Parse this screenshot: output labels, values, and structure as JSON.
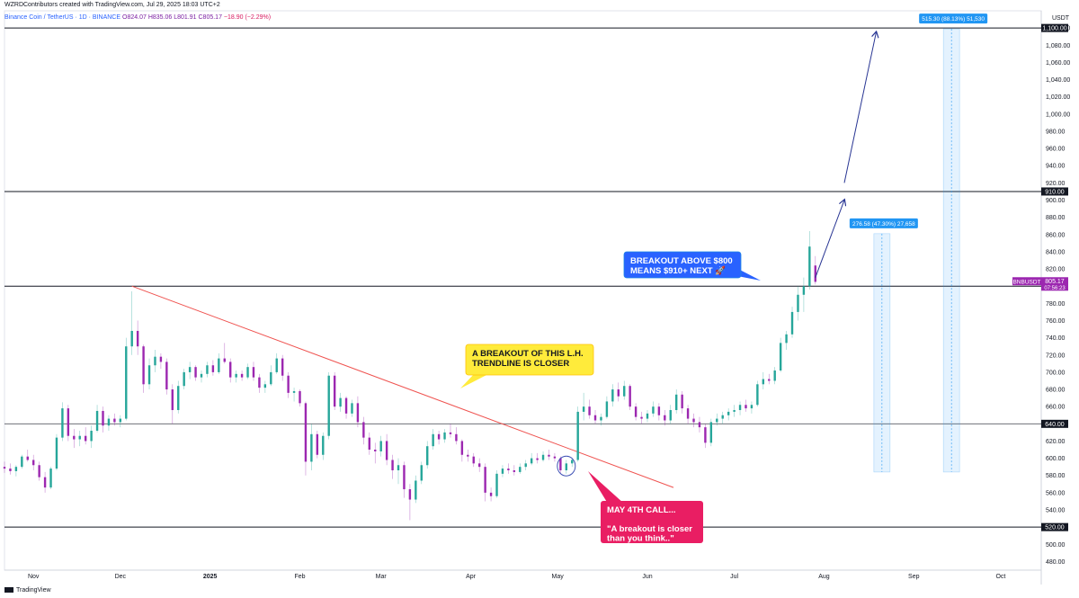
{
  "header": {
    "line1": "WZRDContributors created with TradingView.com, Jul 29, 2025 18:03 UTC+2",
    "symbol": "Binance Coin / TetherUS · 1D · BINANCE",
    "open": "O824.07",
    "high": "H835.06",
    "low": "L801.91",
    "close": "C805.17",
    "change": "−18.90 (−2.29%)"
  },
  "footer": {
    "brand": "TradingView"
  },
  "colors": {
    "up": "#26a69a",
    "down": "#9c27b0",
    "trendline": "#ef5350",
    "arrow": "#283593",
    "range": "#2196f3"
  },
  "chart_data": {
    "type": "candlestick",
    "title": "Binance Coin / TetherUS · 1D · BINANCE",
    "currency_label": "USDT",
    "ylim": [
      470,
      1120
    ],
    "y_ticks": [
      480,
      500,
      520,
      540,
      560,
      580,
      600,
      620,
      640,
      660,
      680,
      700,
      720,
      740,
      760,
      780,
      800,
      820,
      840,
      860,
      880,
      900,
      920,
      940,
      960,
      980,
      1000,
      1020,
      1040,
      1060,
      1080,
      1100
    ],
    "x_ticks": [
      "Nov",
      "Dec",
      "2025",
      "Feb",
      "Mar",
      "Apr",
      "May",
      "Jun",
      "Jul",
      "Aug",
      "Sep",
      "Oct"
    ],
    "x_range": [
      "2024-10-22",
      "2025-10-15"
    ],
    "levels": [
      {
        "label": "1,100.00",
        "value": 1100
      },
      {
        "label": "910.00",
        "value": 910
      },
      {
        "label": "800.00",
        "value": 800
      },
      {
        "label": "640.00",
        "value": 640
      },
      {
        "label": "520.00",
        "value": 520
      }
    ],
    "price_label": {
      "symbol": "BNBUSDT",
      "value": "805.17",
      "timer": "07:56:23"
    },
    "trendline": {
      "start": [
        "2024-12-05",
        800
      ],
      "end": [
        "2025-06-10",
        566
      ]
    },
    "arrows": [
      {
        "from": [
          "2025-07-29",
          810
        ],
        "to": [
          "2025-08-08",
          900
        ]
      },
      {
        "from": [
          "2025-08-08",
          920
        ],
        "to": [
          "2025-08-19",
          1095
        ]
      }
    ],
    "ranges": [
      {
        "label": "276.58 (47.30%) 27,658",
        "date": "2025-08-21",
        "low": 584,
        "high": 861
      },
      {
        "label": "515.30 (88.13%) 51,530",
        "date": "2025-09-14",
        "low": 584,
        "high": 1099
      }
    ],
    "annotations": [
      {
        "lines": [
          "A BREAKOUT OF THIS L.H.",
          "TRENDLINE IS CLOSER"
        ],
        "style": "yellow"
      },
      {
        "lines": [
          "BREAKOUT ABOVE $800",
          "MEANS $910+ NEXT 🚀"
        ],
        "style": "blue"
      },
      {
        "lines": [
          "MAY 4TH CALL...",
          "",
          "\"A breakout is closer",
          "than you think..\""
        ],
        "style": "red"
      }
    ],
    "candles": [
      [
        "2024-10-22",
        590,
        596,
        583,
        588
      ],
      [
        "2024-10-24",
        588,
        594,
        581,
        585
      ],
      [
        "2024-10-26",
        585,
        592,
        579,
        590
      ],
      [
        "2024-10-28",
        590,
        604,
        588,
        602
      ],
      [
        "2024-10-30",
        602,
        610,
        596,
        598
      ],
      [
        "2024-11-01",
        598,
        604,
        586,
        592
      ],
      [
        "2024-11-03",
        592,
        596,
        574,
        578
      ],
      [
        "2024-11-05",
        578,
        584,
        560,
        566
      ],
      [
        "2024-11-07",
        566,
        590,
        564,
        588
      ],
      [
        "2024-11-09",
        588,
        628,
        586,
        624
      ],
      [
        "2024-11-11",
        624,
        665,
        620,
        658
      ],
      [
        "2024-11-13",
        658,
        662,
        620,
        626
      ],
      [
        "2024-11-15",
        626,
        634,
        612,
        622
      ],
      [
        "2024-11-17",
        622,
        632,
        614,
        626
      ],
      [
        "2024-11-19",
        626,
        636,
        616,
        620
      ],
      [
        "2024-11-21",
        620,
        638,
        612,
        632
      ],
      [
        "2024-11-23",
        632,
        662,
        630,
        655
      ],
      [
        "2024-11-25",
        655,
        660,
        630,
        638
      ],
      [
        "2024-11-27",
        638,
        650,
        632,
        646
      ],
      [
        "2024-11-29",
        646,
        652,
        638,
        642
      ],
      [
        "2024-12-01",
        642,
        650,
        636,
        646
      ],
      [
        "2024-12-03",
        646,
        740,
        644,
        730
      ],
      [
        "2024-12-05",
        730,
        794,
        720,
        748
      ],
      [
        "2024-12-07",
        748,
        760,
        720,
        730
      ],
      [
        "2024-12-09",
        730,
        732,
        676,
        686
      ],
      [
        "2024-12-11",
        686,
        716,
        680,
        708
      ],
      [
        "2024-12-13",
        708,
        726,
        700,
        718
      ],
      [
        "2024-12-15",
        718,
        722,
        704,
        712
      ],
      [
        "2024-12-17",
        712,
        716,
        674,
        680
      ],
      [
        "2024-12-19",
        680,
        686,
        640,
        656
      ],
      [
        "2024-12-21",
        656,
        690,
        652,
        684
      ],
      [
        "2024-12-23",
        684,
        704,
        680,
        700
      ],
      [
        "2024-12-25",
        700,
        712,
        692,
        706
      ],
      [
        "2024-12-27",
        706,
        708,
        690,
        694
      ],
      [
        "2024-12-29",
        694,
        702,
        688,
        698
      ],
      [
        "2024-12-31",
        698,
        712,
        694,
        708
      ],
      [
        "2025-01-02",
        708,
        714,
        696,
        700
      ],
      [
        "2025-01-04",
        700,
        722,
        698,
        716
      ],
      [
        "2025-01-06",
        716,
        734,
        710,
        712
      ],
      [
        "2025-01-08",
        712,
        716,
        688,
        694
      ],
      [
        "2025-01-10",
        694,
        702,
        688,
        698
      ],
      [
        "2025-01-12",
        698,
        702,
        690,
        694
      ],
      [
        "2025-01-14",
        694,
        710,
        692,
        706
      ],
      [
        "2025-01-16",
        706,
        712,
        690,
        694
      ],
      [
        "2025-01-18",
        694,
        698,
        676,
        682
      ],
      [
        "2025-01-20",
        682,
        690,
        676,
        686
      ],
      [
        "2025-01-22",
        686,
        708,
        684,
        700
      ],
      [
        "2025-01-24",
        700,
        722,
        698,
        716
      ],
      [
        "2025-01-26",
        716,
        720,
        690,
        696
      ],
      [
        "2025-01-28",
        696,
        700,
        670,
        676
      ],
      [
        "2025-01-30",
        676,
        682,
        666,
        678
      ],
      [
        "2025-02-01",
        678,
        680,
        660,
        664
      ],
      [
        "2025-02-03",
        664,
        666,
        580,
        596
      ],
      [
        "2025-02-05",
        596,
        640,
        586,
        628
      ],
      [
        "2025-02-07",
        628,
        632,
        600,
        604
      ],
      [
        "2025-02-09",
        604,
        630,
        598,
        626
      ],
      [
        "2025-02-11",
        626,
        700,
        622,
        696
      ],
      [
        "2025-02-13",
        696,
        700,
        656,
        660
      ],
      [
        "2025-02-15",
        660,
        676,
        654,
        670
      ],
      [
        "2025-02-17",
        670,
        672,
        646,
        652
      ],
      [
        "2025-02-19",
        652,
        668,
        648,
        664
      ],
      [
        "2025-02-21",
        664,
        672,
        636,
        642
      ],
      [
        "2025-02-23",
        642,
        648,
        616,
        624
      ],
      [
        "2025-02-25",
        624,
        630,
        604,
        610
      ],
      [
        "2025-02-27",
        610,
        618,
        594,
        608
      ],
      [
        "2025-03-01",
        608,
        626,
        602,
        620
      ],
      [
        "2025-03-03",
        620,
        628,
        592,
        598
      ],
      [
        "2025-03-05",
        598,
        604,
        576,
        586
      ],
      [
        "2025-03-07",
        586,
        600,
        570,
        592
      ],
      [
        "2025-03-09",
        592,
        596,
        554,
        564
      ],
      [
        "2025-03-11",
        564,
        570,
        528,
        552
      ],
      [
        "2025-03-13",
        552,
        580,
        548,
        574
      ],
      [
        "2025-03-15",
        574,
        596,
        570,
        592
      ],
      [
        "2025-03-17",
        592,
        620,
        588,
        614
      ],
      [
        "2025-03-19",
        614,
        634,
        610,
        628
      ],
      [
        "2025-03-21",
        628,
        632,
        616,
        622
      ],
      [
        "2025-03-23",
        622,
        634,
        618,
        630
      ],
      [
        "2025-03-25",
        630,
        640,
        624,
        628
      ],
      [
        "2025-03-27",
        628,
        636,
        616,
        620
      ],
      [
        "2025-03-29",
        620,
        622,
        596,
        604
      ],
      [
        "2025-03-31",
        604,
        610,
        596,
        602
      ],
      [
        "2025-04-02",
        602,
        606,
        590,
        594
      ],
      [
        "2025-04-04",
        594,
        600,
        584,
        590
      ],
      [
        "2025-04-06",
        590,
        594,
        550,
        560
      ],
      [
        "2025-04-08",
        560,
        566,
        550,
        556
      ],
      [
        "2025-04-10",
        556,
        586,
        554,
        582
      ],
      [
        "2025-04-12",
        582,
        592,
        578,
        588
      ],
      [
        "2025-04-14",
        588,
        594,
        582,
        586
      ],
      [
        "2025-04-16",
        586,
        592,
        580,
        584
      ],
      [
        "2025-04-18",
        584,
        594,
        582,
        590
      ],
      [
        "2025-04-20",
        590,
        598,
        586,
        594
      ],
      [
        "2025-04-22",
        594,
        606,
        592,
        600
      ],
      [
        "2025-04-24",
        600,
        606,
        594,
        598
      ],
      [
        "2025-04-26",
        598,
        608,
        596,
        604
      ],
      [
        "2025-04-28",
        604,
        610,
        598,
        602
      ],
      [
        "2025-04-30",
        602,
        606,
        596,
        600
      ],
      [
        "2025-05-02",
        600,
        602,
        582,
        586
      ],
      [
        "2025-05-04",
        586,
        598,
        582,
        594
      ],
      [
        "2025-05-06",
        594,
        600,
        590,
        598
      ],
      [
        "2025-05-08",
        598,
        660,
        596,
        654
      ],
      [
        "2025-05-10",
        654,
        676,
        644,
        660
      ],
      [
        "2025-05-12",
        660,
        668,
        646,
        650
      ],
      [
        "2025-05-14",
        650,
        656,
        640,
        644
      ],
      [
        "2025-05-16",
        644,
        652,
        638,
        648
      ],
      [
        "2025-05-18",
        648,
        672,
        646,
        666
      ],
      [
        "2025-05-20",
        666,
        686,
        660,
        680
      ],
      [
        "2025-05-22",
        680,
        688,
        666,
        672
      ],
      [
        "2025-05-24",
        672,
        690,
        668,
        684
      ],
      [
        "2025-05-26",
        684,
        686,
        656,
        660
      ],
      [
        "2025-05-28",
        660,
        664,
        644,
        648
      ],
      [
        "2025-05-30",
        648,
        654,
        640,
        646
      ],
      [
        "2025-06-01",
        646,
        656,
        642,
        652
      ],
      [
        "2025-06-03",
        652,
        666,
        648,
        660
      ],
      [
        "2025-06-05",
        660,
        664,
        644,
        650
      ],
      [
        "2025-06-07",
        650,
        656,
        638,
        644
      ],
      [
        "2025-06-09",
        644,
        662,
        640,
        656
      ],
      [
        "2025-06-11",
        656,
        680,
        652,
        674
      ],
      [
        "2025-06-13",
        674,
        678,
        652,
        658
      ],
      [
        "2025-06-15",
        658,
        662,
        640,
        646
      ],
      [
        "2025-06-17",
        646,
        652,
        636,
        642
      ],
      [
        "2025-06-19",
        642,
        648,
        630,
        636
      ],
      [
        "2025-06-21",
        636,
        640,
        612,
        618
      ],
      [
        "2025-06-23",
        618,
        646,
        614,
        642
      ],
      [
        "2025-06-25",
        642,
        652,
        638,
        646
      ],
      [
        "2025-06-27",
        646,
        654,
        640,
        650
      ],
      [
        "2025-06-29",
        650,
        658,
        644,
        654
      ],
      [
        "2025-07-01",
        654,
        662,
        648,
        656
      ],
      [
        "2025-07-03",
        656,
        666,
        650,
        662
      ],
      [
        "2025-07-05",
        662,
        668,
        654,
        658
      ],
      [
        "2025-07-07",
        658,
        666,
        652,
        662
      ],
      [
        "2025-07-09",
        662,
        690,
        660,
        686
      ],
      [
        "2025-07-11",
        686,
        700,
        680,
        692
      ],
      [
        "2025-07-13",
        692,
        698,
        686,
        690
      ],
      [
        "2025-07-15",
        690,
        706,
        686,
        702
      ],
      [
        "2025-07-17",
        702,
        740,
        700,
        734
      ],
      [
        "2025-07-19",
        734,
        748,
        726,
        744
      ],
      [
        "2025-07-21",
        744,
        776,
        740,
        770
      ],
      [
        "2025-07-23",
        770,
        800,
        760,
        790
      ],
      [
        "2025-07-25",
        790,
        810,
        770,
        800
      ],
      [
        "2025-07-27",
        800,
        864,
        796,
        846
      ],
      [
        "2025-07-29",
        824,
        835,
        802,
        805
      ]
    ]
  }
}
